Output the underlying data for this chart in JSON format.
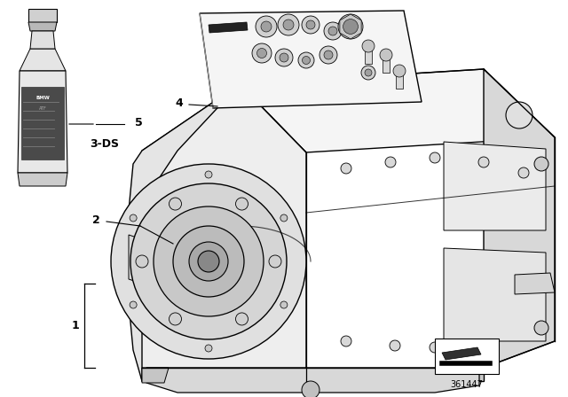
{
  "bg_color": "#ffffff",
  "line_color": "#000000",
  "text_color": "#000000",
  "label_1": "1",
  "label_2": "2",
  "label_4": "4",
  "label_5": "5",
  "label_3ds": "3-DS",
  "part_number": "361447",
  "gearbox_face_color": "#f2f2f2",
  "gearbox_top_color": "#f8f8f8",
  "gearbox_side_color": "#e8e8e8",
  "gearbox_dark_color": "#d0d0d0",
  "bottle_body_color": "#e8e8e8",
  "bottle_label_color": "#555555",
  "bottle_cap_color": "#cccccc",
  "kit_bg_color": "#f5f5f5",
  "detail_gray": "#c8c8c8",
  "shadow_gray": "#b0b0b0"
}
